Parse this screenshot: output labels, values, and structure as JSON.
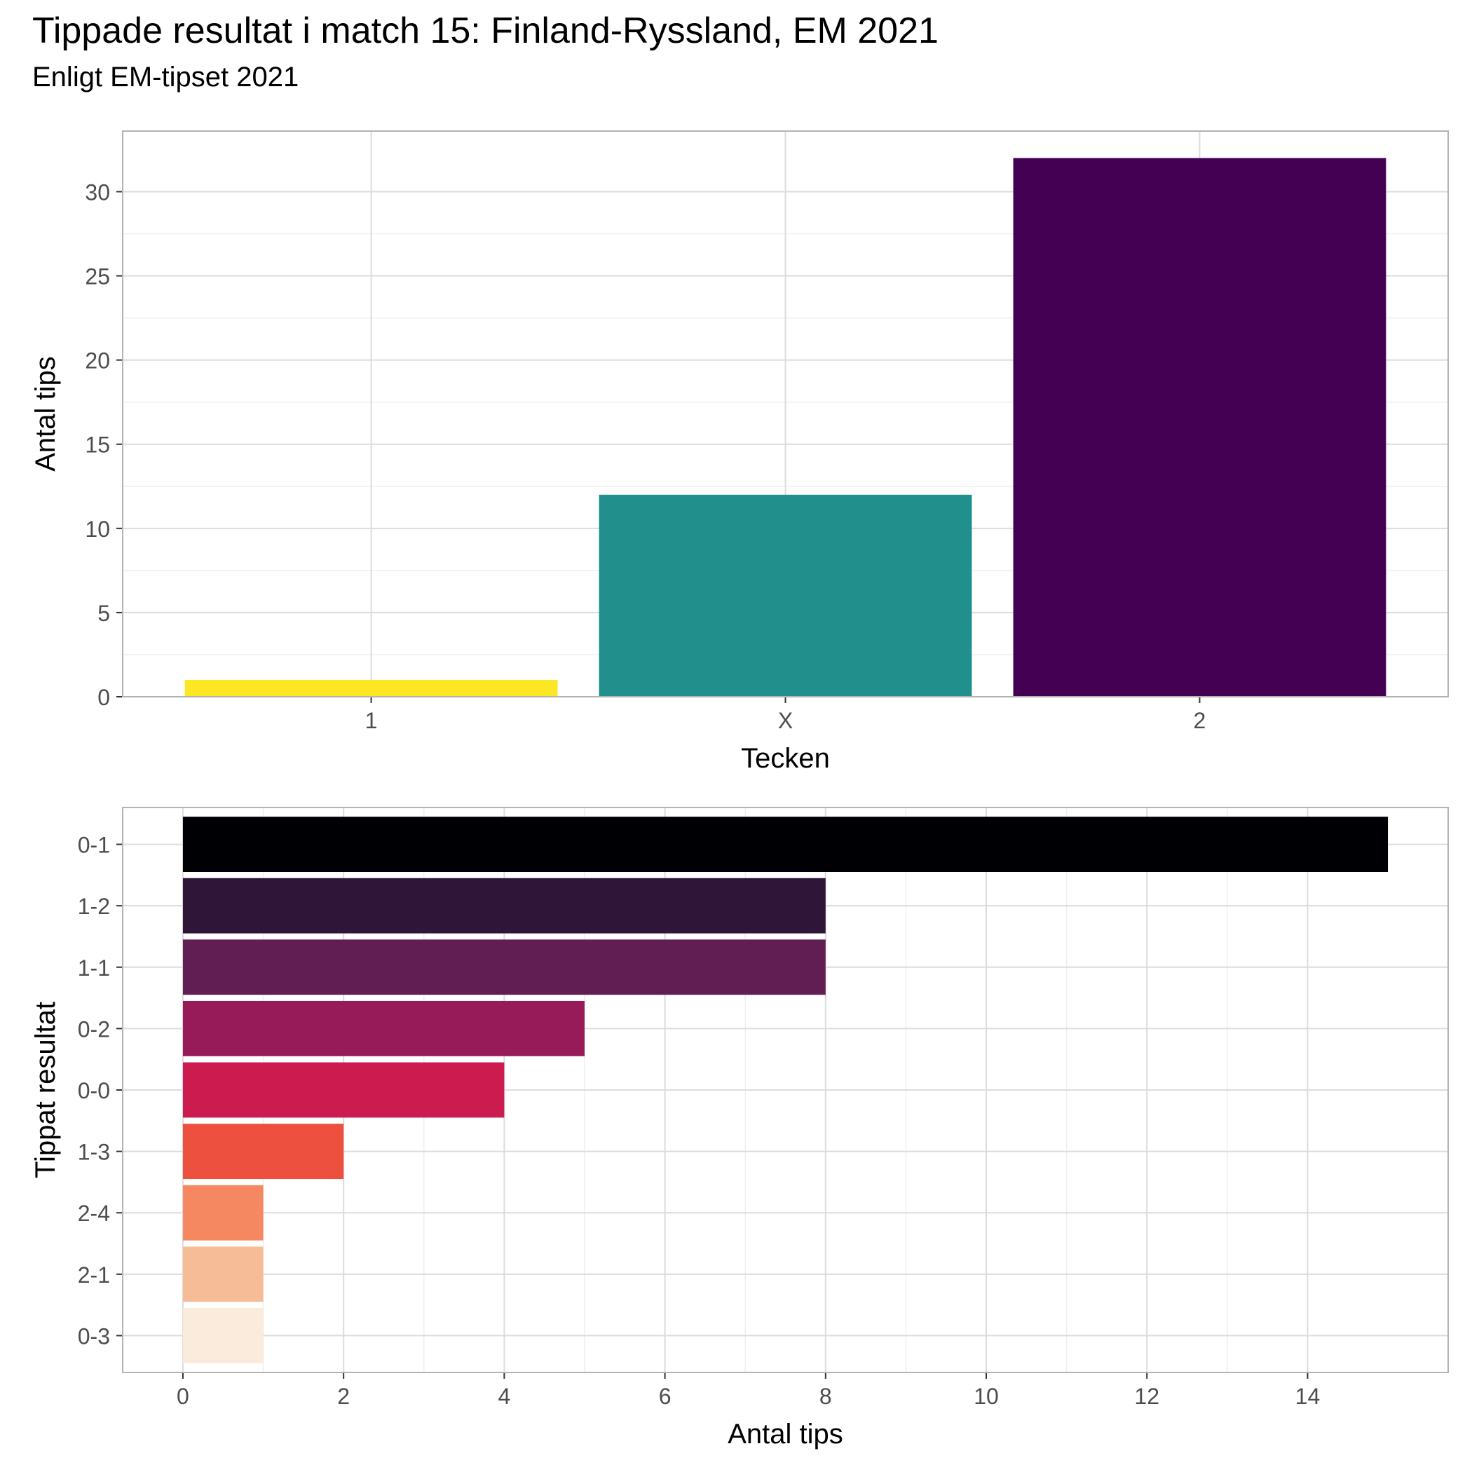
{
  "title": "Tippade resultat i match 15: Finland-Ryssland, EM 2021",
  "subtitle": "Enligt EM-tipset 2021",
  "chart_data": [
    {
      "type": "bar",
      "orientation": "vertical",
      "categories": [
        "1",
        "X",
        "2"
      ],
      "values": [
        1,
        12,
        32
      ],
      "colors": [
        "#FDE725",
        "#21908C",
        "#440154"
      ],
      "xlabel": "Tecken",
      "ylabel": "Antal tips",
      "ylim": [
        0,
        33.6
      ],
      "yticks": [
        0,
        5,
        10,
        15,
        20,
        25,
        30
      ],
      "grid": true
    },
    {
      "type": "bar",
      "orientation": "horizontal",
      "categories": [
        "0-1",
        "1-2",
        "1-1",
        "0-2",
        "0-0",
        "1-3",
        "2-4",
        "2-1",
        "0-3"
      ],
      "values": [
        15,
        8,
        8,
        5,
        4,
        2,
        1,
        1,
        1
      ],
      "colors": [
        "#000004",
        "#2F1639",
        "#611E52",
        "#981B59",
        "#CB1B4F",
        "#ED503E",
        "#F58860",
        "#F6BB97",
        "#FAEBDD"
      ],
      "xlabel": "Antal tips",
      "ylabel": "Tippat resultat",
      "xlim": [
        -0.75,
        15.75
      ],
      "xticks": [
        0,
        2,
        4,
        6,
        8,
        10,
        12,
        14
      ],
      "grid": true
    }
  ]
}
